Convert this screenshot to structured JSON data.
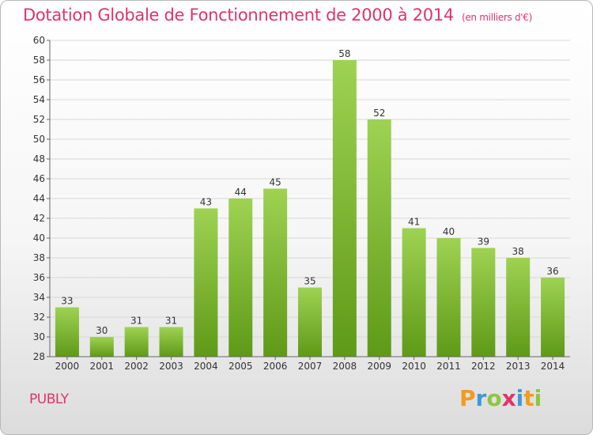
{
  "title": "Dotation Globale de Fonctionnement de 2000 à 2014",
  "title_unit": "(en milliers d'€)",
  "commune": "PUBLY",
  "logo": {
    "letters": [
      "P",
      "r",
      "o",
      "x",
      "i",
      "t",
      "i"
    ],
    "colors": [
      "#f29b1e",
      "#3b9ad9",
      "#8dc63f",
      "#e0336a",
      "#3b9ad9",
      "#f29b1e",
      "#8dc63f"
    ]
  },
  "colors": {
    "bar_top": "#9fd252",
    "bar_bottom": "#5e9a17",
    "title": "#e0336a"
  },
  "chart_data": {
    "type": "bar",
    "title": "Dotation Globale de Fonctionnement de 2000 à 2014",
    "subtitle": "(en milliers d'€)",
    "xlabel": "",
    "ylabel": "",
    "categories": [
      "2000",
      "2001",
      "2002",
      "2003",
      "2004",
      "2005",
      "2006",
      "2007",
      "2008",
      "2009",
      "2010",
      "2011",
      "2012",
      "2013",
      "2014"
    ],
    "values": [
      33,
      30,
      31,
      31,
      43,
      44,
      45,
      35,
      58,
      52,
      41,
      40,
      39,
      38,
      36
    ],
    "ylim": [
      28,
      60
    ],
    "yticks": [
      28,
      30,
      32,
      34,
      36,
      38,
      40,
      42,
      44,
      46,
      48,
      50,
      52,
      54,
      56,
      58,
      60
    ],
    "grid": true,
    "legend": "none"
  }
}
